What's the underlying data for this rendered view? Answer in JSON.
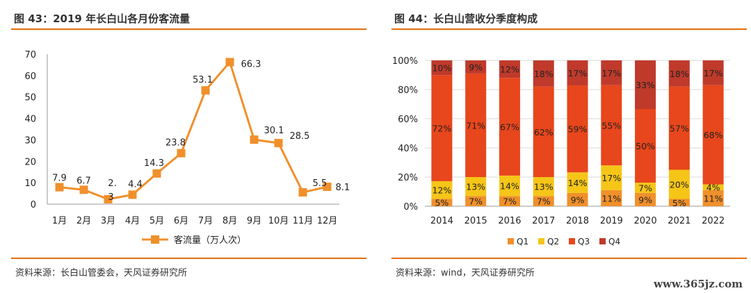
{
  "chart_data": [
    {
      "type": "line",
      "title": "图 43：2019 年长白山各月份客流量",
      "source": "资料来源：长白山管委会，天风证券研究所",
      "categories": [
        "1月",
        "2月",
        "3月",
        "4月",
        "5月",
        "6月",
        "7月",
        "8月",
        "9月",
        "10月",
        "11月",
        "12月"
      ],
      "series": [
        {
          "name": "客流量（万人次）",
          "values": [
            7.9,
            6.7,
            2.3,
            4.4,
            14.3,
            23.8,
            53.1,
            66.3,
            30.1,
            28.5,
            5.5,
            8.1
          ]
        }
      ],
      "data_labels": [
        "7.9",
        "6.7",
        "2.\n3",
        "4.4",
        "14.3",
        "23.8",
        "53.1",
        "66.3",
        "30.1",
        "28.5",
        "5.5",
        "8.1"
      ],
      "ylim": [
        0,
        70
      ],
      "yticks": [
        "0",
        "10",
        "20",
        "30",
        "40",
        "50",
        "60",
        "70"
      ],
      "grid": false,
      "legend": "bottom",
      "colors": {
        "line": "#f0902b",
        "marker": "#f0902b"
      }
    },
    {
      "type": "bar",
      "stacked": true,
      "title": "图 44：长白山营收分季度构成",
      "source": "资料来源：wind，天风证券研究所",
      "categories": [
        "2014",
        "2015",
        "2016",
        "2017",
        "2018",
        "2019",
        "2020",
        "2021",
        "2022"
      ],
      "series": [
        {
          "name": "Q1",
          "values": [
            5,
            7,
            7,
            7,
            9,
            11,
            9,
            5,
            11
          ],
          "color": "#f0902b"
        },
        {
          "name": "Q2",
          "values": [
            12,
            13,
            14,
            13,
            14,
            17,
            7,
            20,
            4
          ],
          "color": "#f5c518"
        },
        {
          "name": "Q3",
          "values": [
            72,
            71,
            67,
            62,
            59,
            55,
            50,
            57,
            68
          ],
          "color": "#e8461c"
        },
        {
          "name": "Q4",
          "values": [
            10,
            9,
            12,
            18,
            17,
            17,
            33,
            18,
            17
          ],
          "color": "#bf3a2b"
        }
      ],
      "ylim": [
        0,
        100
      ],
      "yticks": [
        "0%",
        "20%",
        "40%",
        "60%",
        "80%",
        "100%"
      ],
      "grid": true,
      "legend": "bottom"
    }
  ],
  "watermark": "www.365jz.com"
}
